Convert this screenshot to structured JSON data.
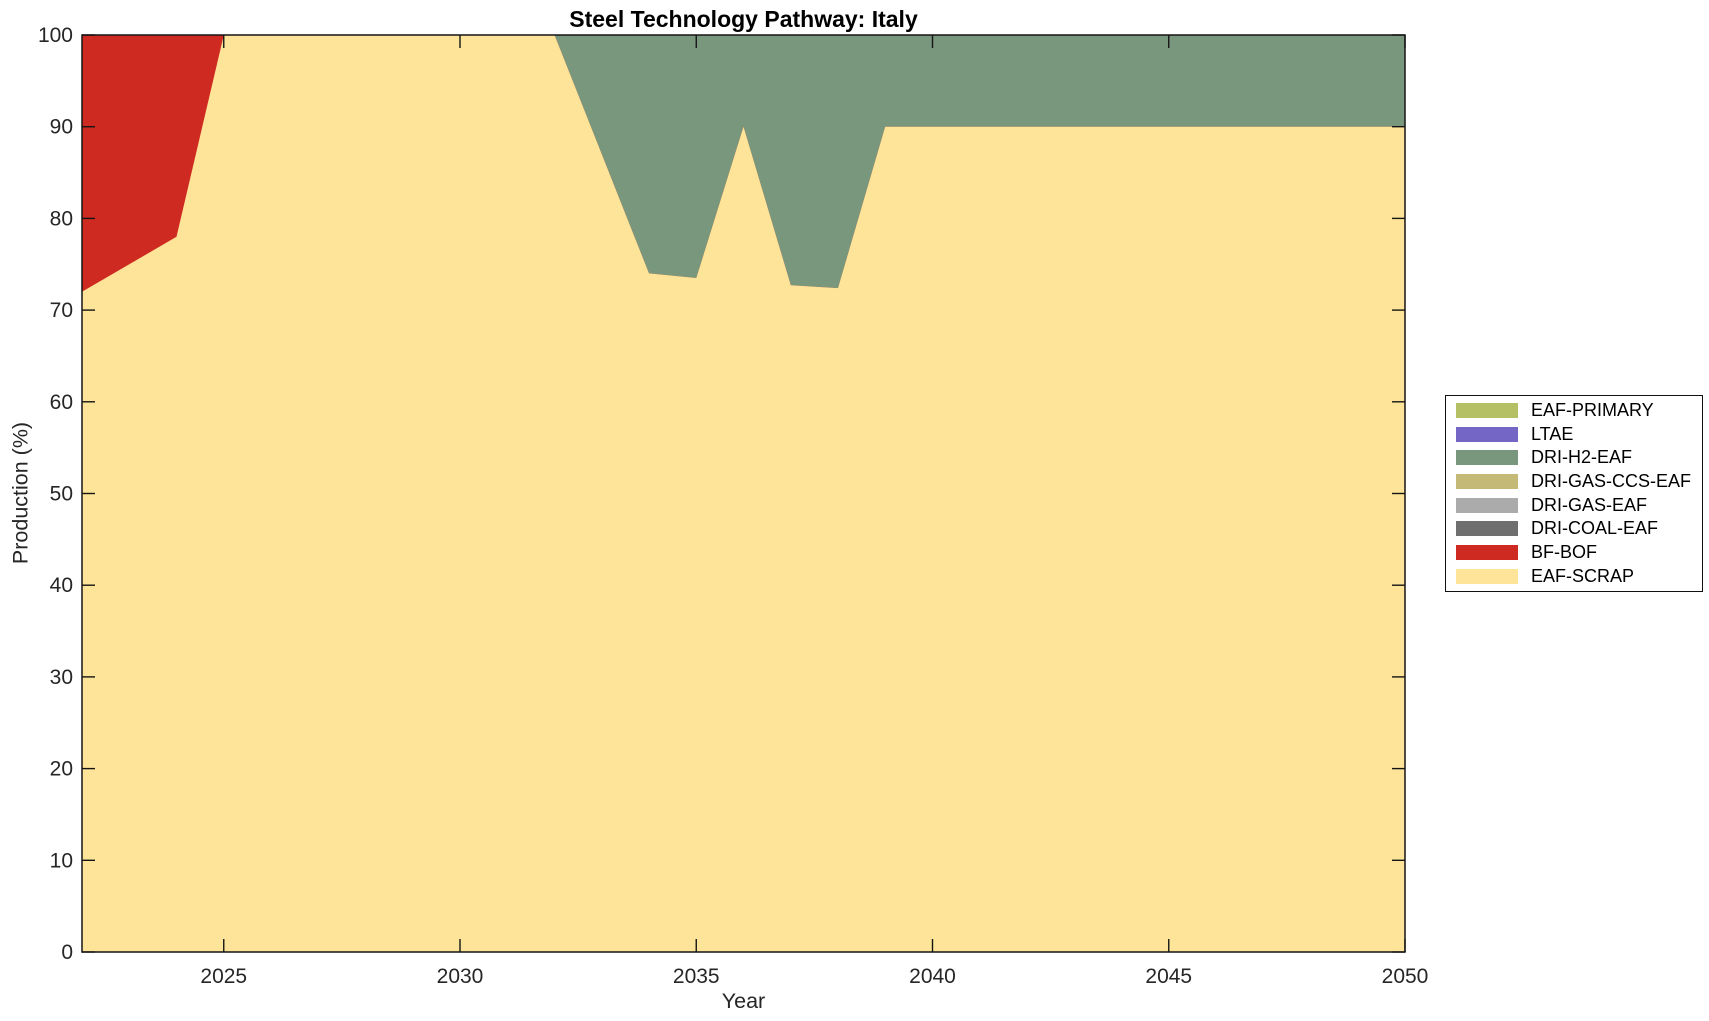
{
  "title": "Steel Technology Pathway: Italy",
  "chart_data": {
    "type": "area",
    "stacked": true,
    "title": "Steel Technology Pathway: Italy",
    "xlabel": "Year",
    "ylabel": "Production (%)",
    "xlim": [
      2022,
      2050
    ],
    "ylim": [
      0,
      100
    ],
    "x_ticks": [
      2025,
      2030,
      2035,
      2040,
      2045,
      2050
    ],
    "y_ticks": [
      0,
      10,
      20,
      30,
      40,
      50,
      60,
      70,
      80,
      90,
      100
    ],
    "grid": false,
    "legend_position": "right-outside",
    "x": [
      2022,
      2023,
      2024,
      2025,
      2026,
      2027,
      2028,
      2029,
      2030,
      2031,
      2032,
      2033,
      2034,
      2035,
      2036,
      2037,
      2038,
      2039,
      2040,
      2041,
      2042,
      2043,
      2044,
      2045,
      2046,
      2047,
      2048,
      2049,
      2050
    ],
    "series": [
      {
        "name": "EAF-SCRAP",
        "color": "#FEE499",
        "values": [
          72,
          75,
          78,
          100,
          100,
          100,
          100,
          100,
          100,
          100,
          100,
          87,
          74,
          73.5,
          90,
          72.7,
          72.4,
          90,
          90,
          90,
          90,
          90,
          90,
          90,
          90,
          90,
          90,
          90,
          90
        ]
      },
      {
        "name": "BF-BOF",
        "color": "#CF2A22",
        "values": [
          28,
          25,
          22,
          0,
          0,
          0,
          0,
          0,
          0,
          0,
          0,
          0,
          0,
          0,
          0,
          0,
          0,
          0,
          0,
          0,
          0,
          0,
          0,
          0,
          0,
          0,
          0,
          0,
          0
        ]
      },
      {
        "name": "DRI-COAL-EAF",
        "color": "#6F6F6F",
        "values": [
          0,
          0,
          0,
          0,
          0,
          0,
          0,
          0,
          0,
          0,
          0,
          0,
          0,
          0,
          0,
          0,
          0,
          0,
          0,
          0,
          0,
          0,
          0,
          0,
          0,
          0,
          0,
          0,
          0
        ]
      },
      {
        "name": "DRI-GAS-EAF",
        "color": "#ABABAB",
        "values": [
          0,
          0,
          0,
          0,
          0,
          0,
          0,
          0,
          0,
          0,
          0,
          0,
          0,
          0,
          0,
          0,
          0,
          0,
          0,
          0,
          0,
          0,
          0,
          0,
          0,
          0,
          0,
          0,
          0
        ]
      },
      {
        "name": "DRI-GAS-CCS-EAF",
        "color": "#C4B977",
        "values": [
          0,
          0,
          0,
          0,
          0,
          0,
          0,
          0,
          0,
          0,
          0,
          0,
          0,
          0,
          0,
          0,
          0,
          0,
          0,
          0,
          0,
          0,
          0,
          0,
          0,
          0,
          0,
          0,
          0
        ]
      },
      {
        "name": "DRI-H2-EAF",
        "color": "#79977C",
        "values": [
          0,
          0,
          0,
          0,
          0,
          0,
          0,
          0,
          0,
          0,
          0,
          13,
          26,
          26.5,
          10,
          27.3,
          27.6,
          10,
          10,
          10,
          10,
          10,
          10,
          10,
          10,
          10,
          10,
          10,
          10
        ]
      },
      {
        "name": "LTAE",
        "color": "#7466C5",
        "values": [
          0,
          0,
          0,
          0,
          0,
          0,
          0,
          0,
          0,
          0,
          0,
          0,
          0,
          0,
          0,
          0,
          0,
          0,
          0,
          0,
          0,
          0,
          0,
          0,
          0,
          0,
          0,
          0,
          0
        ]
      },
      {
        "name": "EAF-PRIMARY",
        "color": "#B4C063",
        "values": [
          0,
          0,
          0,
          0,
          0,
          0,
          0,
          0,
          0,
          0,
          0,
          0,
          0,
          0,
          0,
          0,
          0,
          0,
          0,
          0,
          0,
          0,
          0,
          0,
          0,
          0,
          0,
          0,
          0
        ]
      }
    ],
    "colors": {
      "axis_line": "#151515",
      "tick_label": "#262626"
    }
  }
}
